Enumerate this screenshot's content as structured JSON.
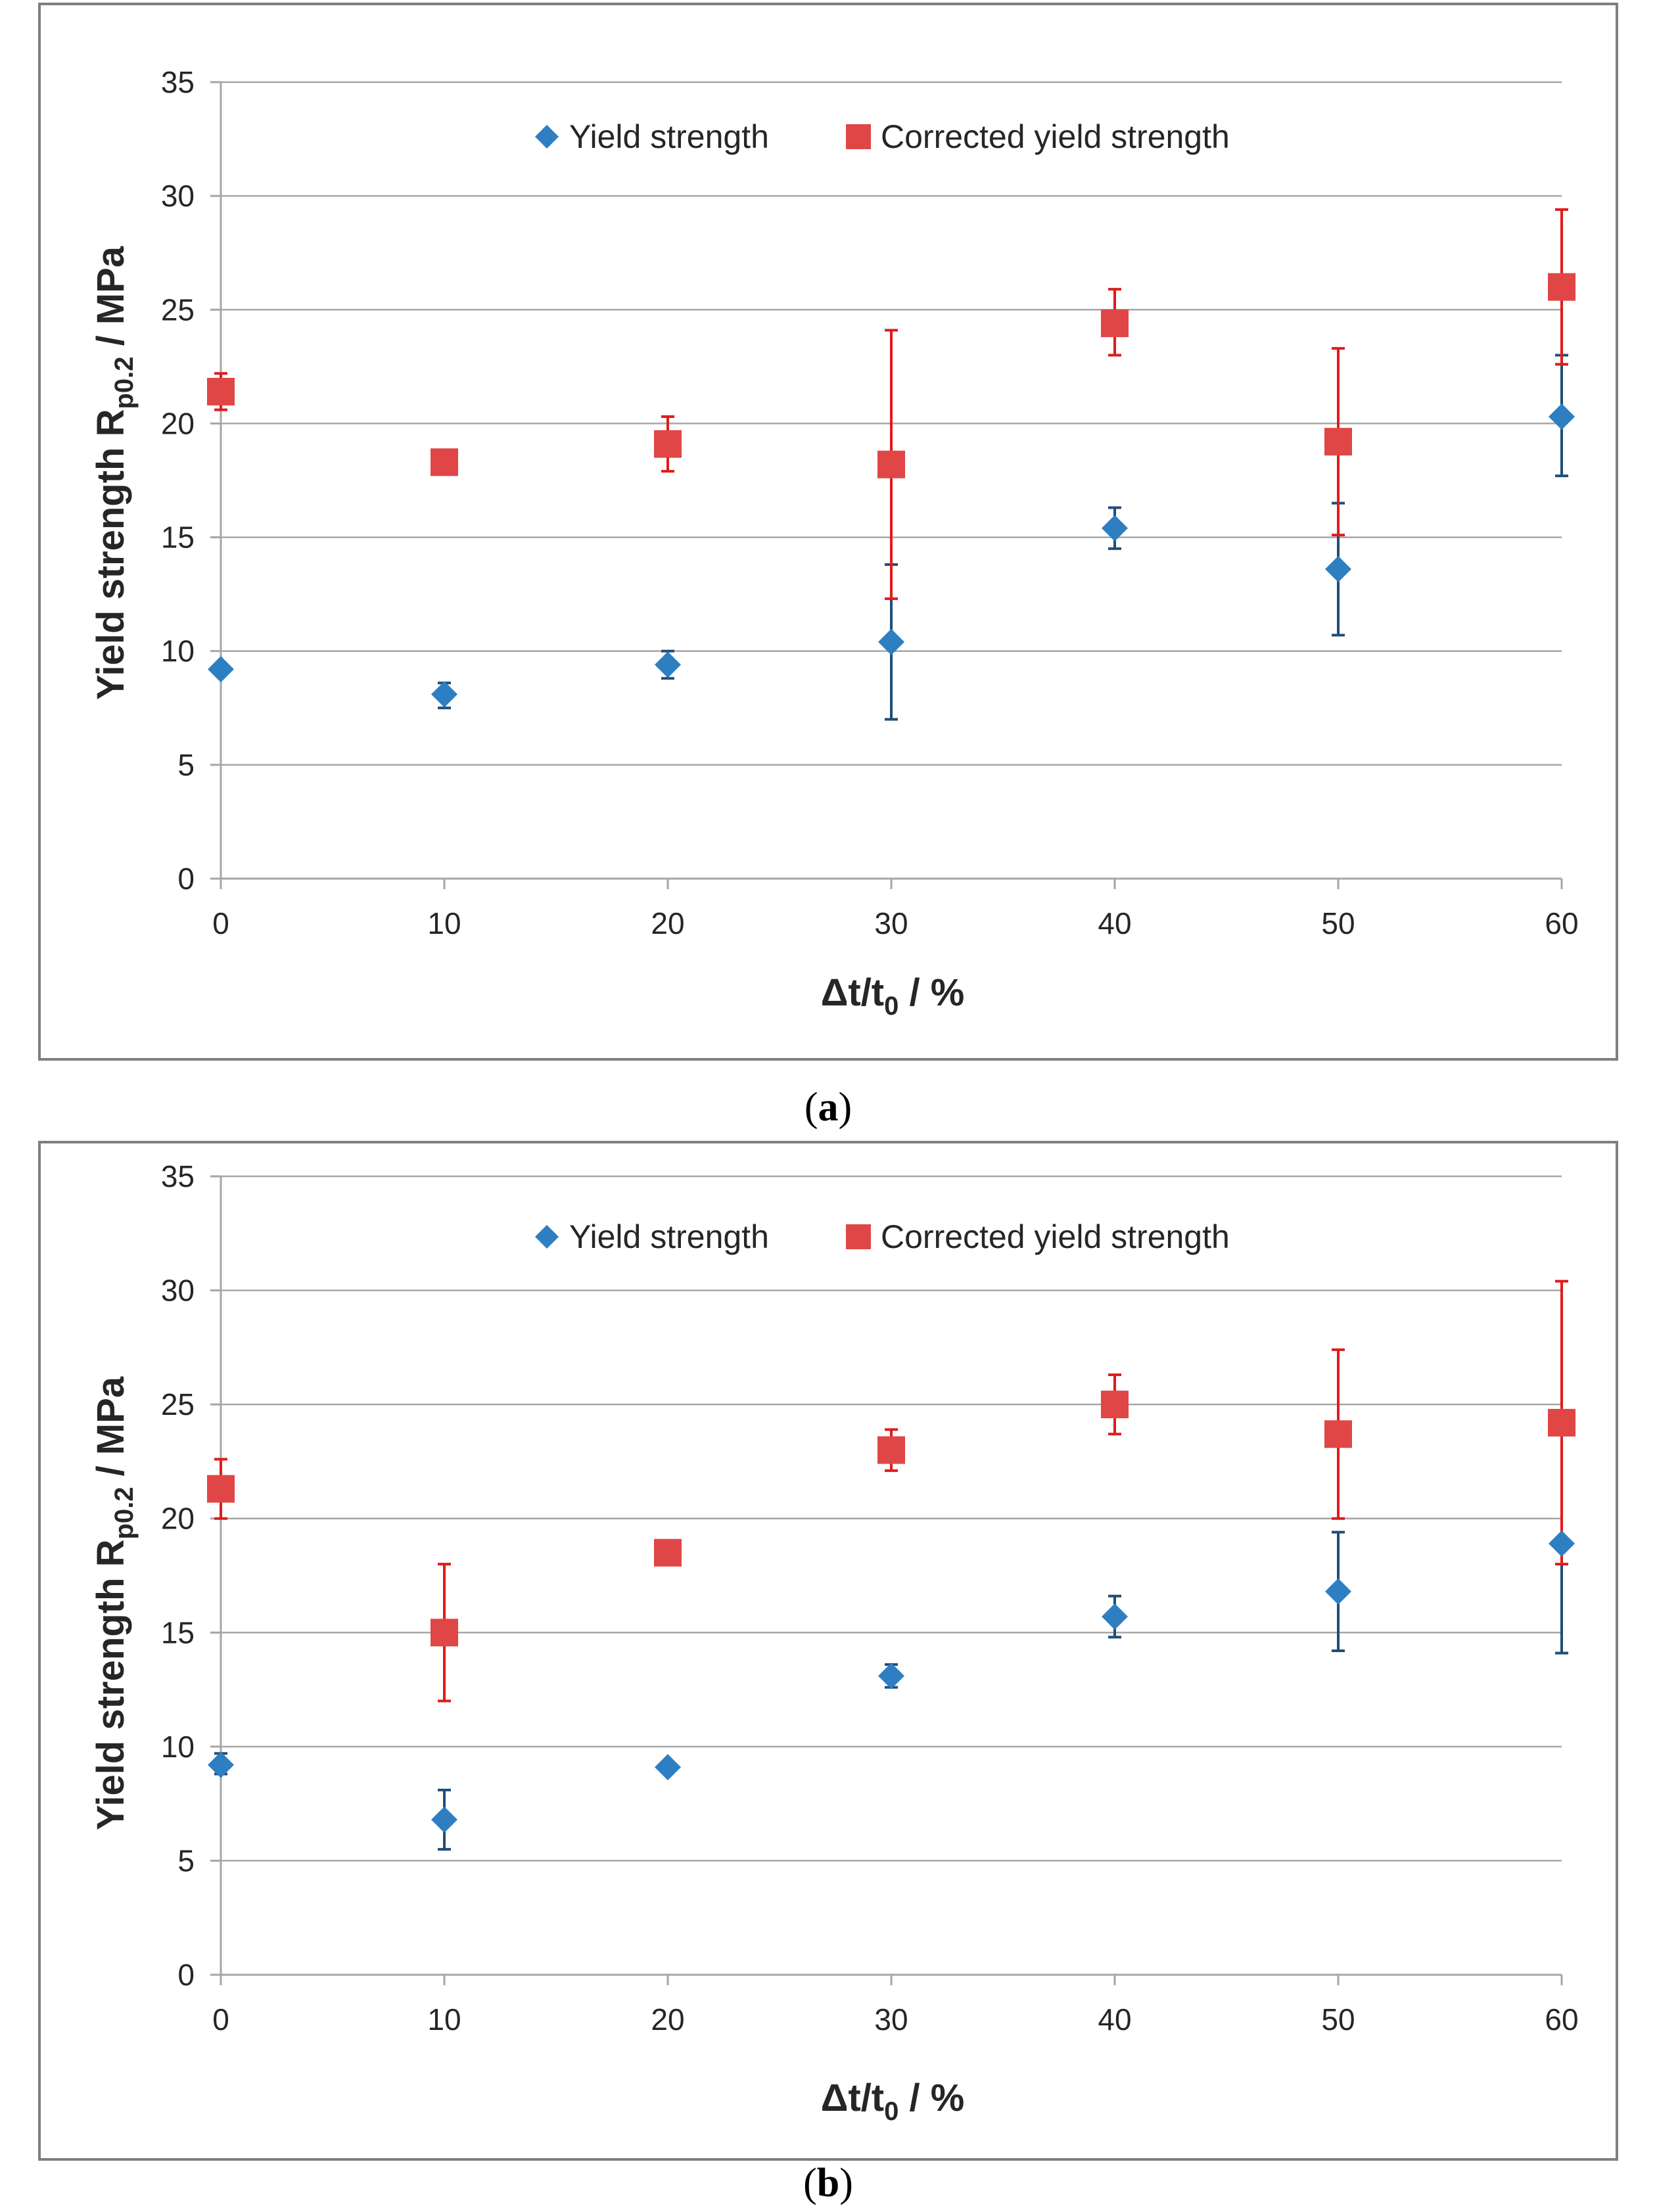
{
  "colors": {
    "yield": "#2e7fc2",
    "yield_err": "#1f4e79",
    "corrected": "#e04646",
    "corrected_err": "#e01b1b"
  },
  "chart_data": [
    {
      "type": "scatter",
      "caption_open": "(",
      "caption_letter": "a",
      "caption_close": ")",
      "xlabel_main": "Δt/t",
      "xlabel_sub": "0",
      "xlabel_tail": " / %",
      "ylabel_main": "Yield strength  R",
      "ylabel_sub": "p0.2",
      "ylabel_tail": " / MPa",
      "xlim": [
        0,
        60
      ],
      "ylim": [
        0,
        35
      ],
      "xticks": [
        0,
        10,
        20,
        30,
        40,
        50,
        60
      ],
      "yticks": [
        0,
        5,
        10,
        15,
        20,
        25,
        30,
        35
      ],
      "grid": true,
      "legend": "top",
      "series": [
        {
          "name": "Yield strength",
          "marker": "diamond",
          "x": [
            0,
            10,
            20,
            30,
            40,
            50,
            60
          ],
          "y": [
            9.2,
            8.1,
            9.4,
            10.4,
            15.4,
            13.6,
            20.3
          ],
          "err_low": [
            9.0,
            7.5,
            8.8,
            7.0,
            14.5,
            10.7,
            17.7
          ],
          "err_high": [
            9.4,
            8.6,
            10.0,
            13.8,
            16.3,
            16.5,
            23.0
          ]
        },
        {
          "name": "Corrected yield strength",
          "marker": "square",
          "x": [
            0,
            10,
            20,
            30,
            40,
            50,
            60
          ],
          "y": [
            21.4,
            18.3,
            19.1,
            18.2,
            24.4,
            19.2,
            26.0
          ],
          "err_low": [
            20.6,
            18.0,
            17.9,
            12.3,
            23.0,
            15.1,
            22.6
          ],
          "err_high": [
            22.2,
            18.6,
            20.3,
            24.1,
            25.9,
            23.3,
            29.4
          ]
        }
      ]
    },
    {
      "type": "scatter",
      "caption_open": "(",
      "caption_letter": "b",
      "caption_close": ")",
      "xlabel_main": "Δt/t",
      "xlabel_sub": "0",
      "xlabel_tail": " / %",
      "ylabel_main": "Yield strength  R",
      "ylabel_sub": "p0.2",
      "ylabel_tail": " / MPa",
      "xlim": [
        0,
        60
      ],
      "ylim": [
        0,
        35
      ],
      "xticks": [
        0,
        10,
        20,
        30,
        40,
        50,
        60
      ],
      "yticks": [
        0,
        5,
        10,
        15,
        20,
        25,
        30,
        35
      ],
      "grid": true,
      "legend": "top",
      "series": [
        {
          "name": "Yield strength",
          "marker": "diamond",
          "x": [
            0,
            10,
            20,
            30,
            40,
            50,
            60
          ],
          "y": [
            9.2,
            6.8,
            9.1,
            13.1,
            15.7,
            16.8,
            18.9
          ],
          "err_low": [
            8.8,
            5.5,
            9.0,
            12.6,
            14.8,
            14.2,
            14.1
          ],
          "err_high": [
            9.7,
            8.1,
            9.2,
            13.6,
            16.6,
            19.4,
            23.7
          ]
        },
        {
          "name": "Corrected yield strength",
          "marker": "square",
          "x": [
            0,
            10,
            20,
            30,
            40,
            50,
            60
          ],
          "y": [
            21.3,
            15.0,
            18.5,
            23.0,
            25.0,
            23.7,
            24.2
          ],
          "err_low": [
            20.0,
            12.0,
            18.3,
            22.1,
            23.7,
            20.0,
            18.0
          ],
          "err_high": [
            22.6,
            18.0,
            18.7,
            23.9,
            26.3,
            27.4,
            30.4
          ]
        }
      ]
    }
  ]
}
